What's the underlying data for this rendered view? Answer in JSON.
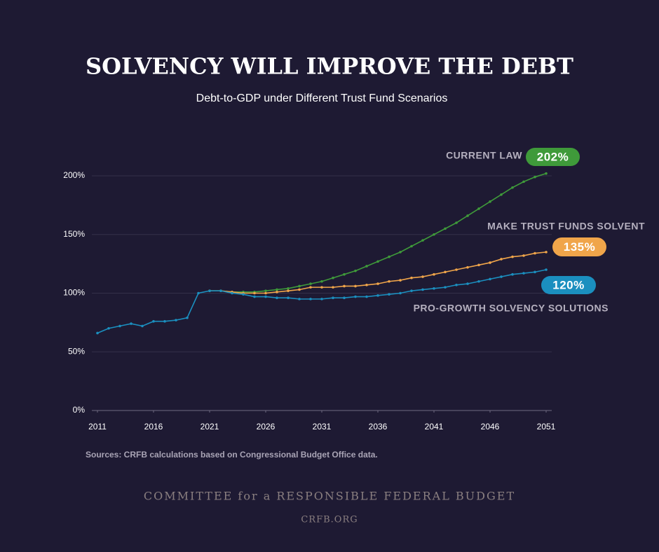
{
  "chart_data": {
    "type": "line",
    "title": "SOLVENCY WILL IMPROVE THE DEBT",
    "subtitle": "Debt-to-GDP under Different Trust Fund Scenarios",
    "source": "Sources: CRFB calculations based on Congressional Budget Office data.",
    "x": [
      2011,
      2012,
      2013,
      2014,
      2015,
      2016,
      2017,
      2018,
      2019,
      2020,
      2021,
      2022,
      2023,
      2024,
      2025,
      2026,
      2027,
      2028,
      2029,
      2030,
      2031,
      2032,
      2033,
      2034,
      2035,
      2036,
      2037,
      2038,
      2039,
      2040,
      2041,
      2042,
      2043,
      2044,
      2045,
      2046,
      2047,
      2048,
      2049,
      2050,
      2051
    ],
    "xlim": [
      2010.5,
      2051.5
    ],
    "xticks": [
      2011,
      2016,
      2021,
      2026,
      2031,
      2036,
      2041,
      2046,
      2051
    ],
    "ylim": [
      0,
      200
    ],
    "yticks": [
      {
        "value": 0,
        "label": "0%"
      },
      {
        "value": 50,
        "label": "50%"
      },
      {
        "value": 100,
        "label": "100%"
      },
      {
        "value": 150,
        "label": "150%"
      },
      {
        "value": 200,
        "label": "200%"
      }
    ],
    "grid": true,
    "series": [
      {
        "name": "CURRENT LAW",
        "color": "#3f9a3a",
        "values": [
          null,
          null,
          null,
          null,
          null,
          null,
          null,
          null,
          null,
          null,
          102,
          102,
          101,
          101,
          101,
          102,
          103,
          104,
          106,
          108,
          110,
          113,
          116,
          119,
          123,
          127,
          131,
          135,
          140,
          145,
          150,
          155,
          160,
          166,
          172,
          178,
          184,
          190,
          195,
          199,
          202
        ],
        "value_labels": [
          null,
          null,
          null,
          null,
          null,
          null,
          null,
          null,
          null,
          null,
          null,
          null,
          null,
          null,
          null,
          null,
          null,
          null,
          null,
          null,
          null,
          null,
          null,
          null,
          null,
          null,
          null,
          null,
          null,
          null,
          null,
          null,
          null,
          null,
          null,
          null,
          null,
          null,
          null,
          null,
          "202%"
        ]
      },
      {
        "name": "MAKE TRUST FUNDS SOLVENT",
        "color": "#f0a54a",
        "values": [
          null,
          null,
          null,
          null,
          null,
          null,
          null,
          null,
          null,
          null,
          102,
          102,
          101,
          100,
          100,
          100,
          101,
          102,
          103,
          105,
          105,
          105,
          106,
          106,
          107,
          108,
          110,
          111,
          113,
          114,
          116,
          118,
          120,
          122,
          124,
          126,
          129,
          131,
          132,
          134,
          135
        ],
        "value_labels": [
          null,
          null,
          null,
          null,
          null,
          null,
          null,
          null,
          null,
          null,
          null,
          null,
          null,
          null,
          null,
          null,
          null,
          null,
          null,
          null,
          null,
          null,
          null,
          null,
          null,
          null,
          null,
          null,
          null,
          null,
          null,
          null,
          null,
          null,
          null,
          null,
          null,
          null,
          null,
          null,
          "135%"
        ]
      },
      {
        "name": "PRO-GROWTH SOLVENCY SOLUTIONS",
        "color": "#1b8fbf",
        "values": [
          66,
          70,
          72,
          74,
          72,
          76,
          76,
          77,
          79,
          100,
          102,
          102,
          100,
          99,
          97,
          97,
          96,
          96,
          95,
          95,
          95,
          96,
          96,
          97,
          97,
          98,
          99,
          100,
          102,
          103,
          104,
          105,
          107,
          108,
          110,
          112,
          114,
          116,
          117,
          118,
          120
        ],
        "value_labels": [
          null,
          null,
          null,
          null,
          null,
          null,
          null,
          null,
          null,
          null,
          null,
          null,
          null,
          null,
          null,
          null,
          null,
          null,
          null,
          null,
          null,
          null,
          null,
          null,
          null,
          null,
          null,
          null,
          null,
          null,
          null,
          null,
          null,
          null,
          null,
          null,
          null,
          null,
          null,
          null,
          "120%"
        ]
      }
    ]
  },
  "footer": {
    "organization": "COMMITTEE for a RESPONSIBLE FEDERAL BUDGET",
    "website": "CRFB.ORG"
  }
}
